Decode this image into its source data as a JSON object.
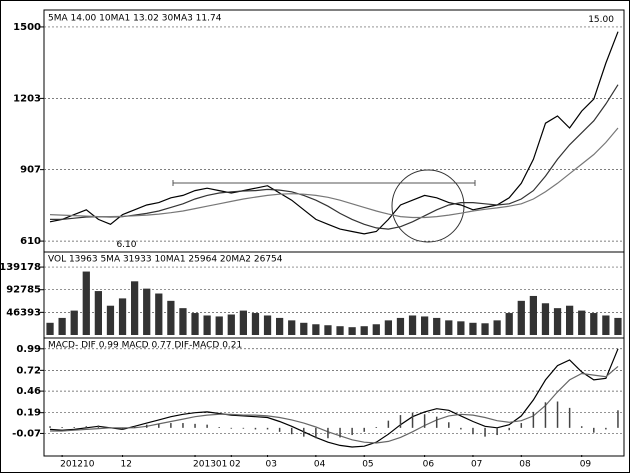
{
  "chart_data": [
    {
      "type": "line",
      "title": "5MA 14.00  10MA1 13.02  30MA3 11.74",
      "ylim": [
        573,
        1562
      ],
      "yticks": [
        610,
        907,
        1203,
        1500
      ],
      "grid": true,
      "annotations": [
        "15.00",
        "6.10"
      ],
      "series": [
        {
          "name": "5MA",
          "color": "#000000",
          "values": [
            690,
            700,
            720,
            740,
            700,
            680,
            720,
            740,
            760,
            770,
            790,
            800,
            820,
            830,
            820,
            810,
            820,
            830,
            840,
            810,
            780,
            740,
            700,
            680,
            660,
            650,
            640,
            650,
            700,
            760,
            780,
            800,
            790,
            770,
            760,
            740,
            750,
            760,
            790,
            850,
            950,
            1100,
            1130,
            1080,
            1150,
            1200,
            1350,
            1480
          ]
        },
        {
          "name": "10MA1",
          "color": "#333333",
          "values": [
            700,
            700,
            705,
            710,
            712,
            710,
            712,
            718,
            725,
            735,
            750,
            765,
            785,
            800,
            810,
            815,
            818,
            820,
            825,
            822,
            815,
            800,
            780,
            755,
            725,
            700,
            680,
            665,
            660,
            670,
            690,
            715,
            740,
            760,
            770,
            770,
            765,
            760,
            765,
            785,
            820,
            880,
            950,
            1010,
            1060,
            1110,
            1180,
            1260
          ]
        },
        {
          "name": "30MA3",
          "color": "#777777",
          "values": [
            720,
            718,
            716,
            714,
            712,
            712,
            713,
            715,
            718,
            722,
            728,
            735,
            745,
            755,
            765,
            775,
            785,
            793,
            800,
            805,
            807,
            805,
            800,
            792,
            780,
            765,
            750,
            735,
            722,
            712,
            708,
            708,
            712,
            718,
            726,
            735,
            742,
            748,
            755,
            765,
            785,
            815,
            850,
            890,
            930,
            970,
            1020,
            1080
          ]
        }
      ]
    },
    {
      "type": "bar",
      "title": "VOL 13963  5MA 31933  10MA1 25964  20MA2 26754",
      "ylim": [
        0,
        168000
      ],
      "yticks": [
        46393,
        92785,
        139178
      ],
      "grid": true,
      "color": "#333333",
      "values": [
        25000,
        35000,
        50000,
        130000,
        90000,
        60000,
        75000,
        110000,
        95000,
        85000,
        70000,
        55000,
        45000,
        40000,
        38000,
        42000,
        50000,
        45000,
        40000,
        35000,
        30000,
        25000,
        22000,
        20000,
        18000,
        16000,
        18000,
        22000,
        30000,
        35000,
        40000,
        38000,
        35000,
        30000,
        28000,
        25000,
        24000,
        30000,
        45000,
        70000,
        80000,
        65000,
        55000,
        60000,
        50000,
        45000,
        40000,
        35000
      ]
    },
    {
      "type": "macd",
      "title": "MACD- DIF 0.99  MACD 0.77  DIF-MACD 0.21",
      "ylim": [
        -0.34,
        1.1
      ],
      "yticks": [
        -0.07,
        0.19,
        0.46,
        0.72,
        0.99
      ],
      "grid": true,
      "categories": [
        null,
        "201210",
        null,
        null,
        null,
        null,
        "12",
        null,
        null,
        null,
        null,
        null,
        "201301",
        null,
        null,
        "02",
        null,
        null,
        "03",
        null,
        null,
        null,
        "04",
        null,
        null,
        null,
        "05",
        null,
        null,
        null,
        null,
        "06",
        null,
        null,
        null,
        "07",
        null,
        null,
        null,
        "08",
        null,
        null,
        null,
        null,
        "09",
        null,
        null,
        null
      ],
      "series": [
        {
          "name": "DIF",
          "color": "#000000",
          "style": "line",
          "values": [
            -0.02,
            -0.03,
            -0.02,
            0.0,
            0.02,
            0.0,
            -0.02,
            0.02,
            0.06,
            0.1,
            0.14,
            0.17,
            0.19,
            0.2,
            0.18,
            0.16,
            0.15,
            0.14,
            0.13,
            0.08,
            0.02,
            -0.05,
            -0.12,
            -0.18,
            -0.22,
            -0.24,
            -0.23,
            -0.18,
            -0.08,
            0.04,
            0.14,
            0.2,
            0.24,
            0.22,
            0.15,
            0.08,
            0.02,
            0.0,
            0.04,
            0.15,
            0.35,
            0.6,
            0.78,
            0.85,
            0.7,
            0.6,
            0.62,
            0.99
          ]
        },
        {
          "name": "MACD",
          "color": "#666666",
          "style": "line",
          "values": [
            -0.04,
            -0.04,
            -0.03,
            -0.02,
            -0.01,
            0.0,
            0.0,
            0.0,
            0.02,
            0.05,
            0.08,
            0.11,
            0.14,
            0.16,
            0.17,
            0.17,
            0.16,
            0.16,
            0.15,
            0.13,
            0.1,
            0.06,
            0.01,
            -0.05,
            -0.1,
            -0.15,
            -0.18,
            -0.19,
            -0.17,
            -0.12,
            -0.05,
            0.03,
            0.1,
            0.15,
            0.17,
            0.16,
            0.13,
            0.09,
            0.07,
            0.09,
            0.15,
            0.28,
            0.45,
            0.6,
            0.68,
            0.66,
            0.64,
            0.77
          ]
        },
        {
          "name": "DIF-MACD",
          "color": "#444444",
          "style": "bar",
          "values": [
            0.02,
            0.01,
            0.01,
            0.02,
            0.03,
            0,
            -0.02,
            0.02,
            0.04,
            0.05,
            0.06,
            0.06,
            0.05,
            0.04,
            0.01,
            -0.01,
            -0.01,
            -0.02,
            -0.02,
            -0.05,
            -0.08,
            -0.11,
            -0.13,
            -0.13,
            -0.12,
            -0.09,
            -0.05,
            0.01,
            0.09,
            0.16,
            0.19,
            0.17,
            0.14,
            0.07,
            -0.02,
            -0.08,
            -0.11,
            -0.09,
            -0.03,
            0.06,
            0.2,
            0.32,
            0.33,
            0.25,
            0.02,
            -0.06,
            -0.02,
            0.22
          ]
        }
      ]
    }
  ]
}
